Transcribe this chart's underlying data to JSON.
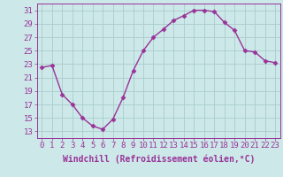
{
  "x": [
    0,
    1,
    2,
    3,
    4,
    5,
    6,
    7,
    8,
    9,
    10,
    11,
    12,
    13,
    14,
    15,
    16,
    17,
    18,
    19,
    20,
    21,
    22,
    23
  ],
  "y": [
    22.5,
    22.8,
    18.5,
    17.0,
    15.0,
    13.8,
    13.3,
    14.8,
    18.0,
    22.0,
    25.0,
    27.0,
    28.2,
    29.5,
    30.2,
    31.0,
    31.0,
    30.8,
    29.2,
    28.0,
    25.0,
    24.8,
    23.5,
    23.2
  ],
  "line_color": "#993399",
  "marker": "D",
  "marker_size": 2.5,
  "bg_color": "#cce8e8",
  "grid_color": "#aacccc",
  "xlabel": "Windchill (Refroidissement éolien,°C)",
  "ylabel": "",
  "title": "",
  "xlim": [
    -0.5,
    23.5
  ],
  "ylim": [
    12,
    32
  ],
  "yticks": [
    13,
    15,
    17,
    19,
    21,
    23,
    25,
    27,
    29,
    31
  ],
  "xtick_labels": [
    "0",
    "1",
    "2",
    "3",
    "4",
    "5",
    "6",
    "7",
    "8",
    "9",
    "10",
    "11",
    "12",
    "13",
    "14",
    "15",
    "16",
    "17",
    "18",
    "19",
    "20",
    "21",
    "22",
    "23"
  ],
  "xlabel_fontsize": 7,
  "tick_fontsize": 6.5,
  "line_width": 1.0
}
